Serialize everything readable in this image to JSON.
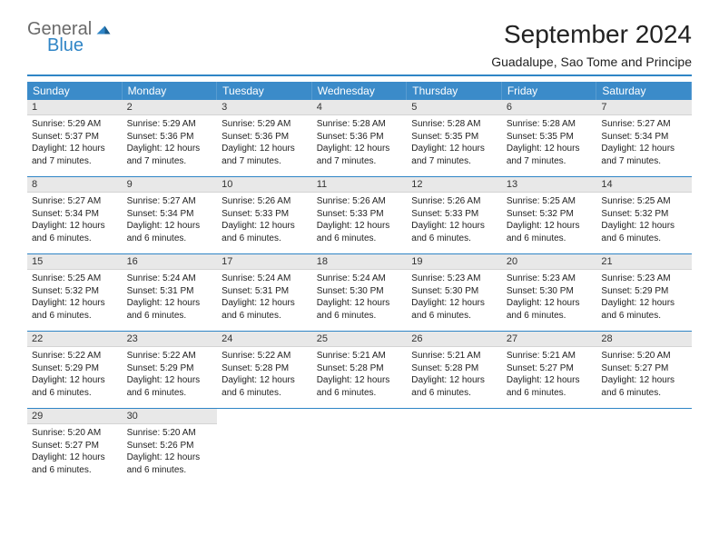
{
  "logo": {
    "text1": "General",
    "text2": "Blue",
    "accent": "#2f85c6",
    "gray": "#6a6a6a"
  },
  "title": "September 2024",
  "location": "Guadalupe, Sao Tome and Principe",
  "daynames": [
    "Sunday",
    "Monday",
    "Tuesday",
    "Wednesday",
    "Thursday",
    "Friday",
    "Saturday"
  ],
  "colors": {
    "header_bg": "#3b8bc9",
    "underline": "#2f85c6",
    "daynum_bg": "#e8e8e8",
    "text": "#111111",
    "background": "#ffffff"
  },
  "weeks": [
    [
      {
        "n": "1",
        "sr": "Sunrise: 5:29 AM",
        "ss": "Sunset: 5:37 PM",
        "dl": "Daylight: 12 hours and 7 minutes."
      },
      {
        "n": "2",
        "sr": "Sunrise: 5:29 AM",
        "ss": "Sunset: 5:36 PM",
        "dl": "Daylight: 12 hours and 7 minutes."
      },
      {
        "n": "3",
        "sr": "Sunrise: 5:29 AM",
        "ss": "Sunset: 5:36 PM",
        "dl": "Daylight: 12 hours and 7 minutes."
      },
      {
        "n": "4",
        "sr": "Sunrise: 5:28 AM",
        "ss": "Sunset: 5:36 PM",
        "dl": "Daylight: 12 hours and 7 minutes."
      },
      {
        "n": "5",
        "sr": "Sunrise: 5:28 AM",
        "ss": "Sunset: 5:35 PM",
        "dl": "Daylight: 12 hours and 7 minutes."
      },
      {
        "n": "6",
        "sr": "Sunrise: 5:28 AM",
        "ss": "Sunset: 5:35 PM",
        "dl": "Daylight: 12 hours and 7 minutes."
      },
      {
        "n": "7",
        "sr": "Sunrise: 5:27 AM",
        "ss": "Sunset: 5:34 PM",
        "dl": "Daylight: 12 hours and 7 minutes."
      }
    ],
    [
      {
        "n": "8",
        "sr": "Sunrise: 5:27 AM",
        "ss": "Sunset: 5:34 PM",
        "dl": "Daylight: 12 hours and 6 minutes."
      },
      {
        "n": "9",
        "sr": "Sunrise: 5:27 AM",
        "ss": "Sunset: 5:34 PM",
        "dl": "Daylight: 12 hours and 6 minutes."
      },
      {
        "n": "10",
        "sr": "Sunrise: 5:26 AM",
        "ss": "Sunset: 5:33 PM",
        "dl": "Daylight: 12 hours and 6 minutes."
      },
      {
        "n": "11",
        "sr": "Sunrise: 5:26 AM",
        "ss": "Sunset: 5:33 PM",
        "dl": "Daylight: 12 hours and 6 minutes."
      },
      {
        "n": "12",
        "sr": "Sunrise: 5:26 AM",
        "ss": "Sunset: 5:33 PM",
        "dl": "Daylight: 12 hours and 6 minutes."
      },
      {
        "n": "13",
        "sr": "Sunrise: 5:25 AM",
        "ss": "Sunset: 5:32 PM",
        "dl": "Daylight: 12 hours and 6 minutes."
      },
      {
        "n": "14",
        "sr": "Sunrise: 5:25 AM",
        "ss": "Sunset: 5:32 PM",
        "dl": "Daylight: 12 hours and 6 minutes."
      }
    ],
    [
      {
        "n": "15",
        "sr": "Sunrise: 5:25 AM",
        "ss": "Sunset: 5:32 PM",
        "dl": "Daylight: 12 hours and 6 minutes."
      },
      {
        "n": "16",
        "sr": "Sunrise: 5:24 AM",
        "ss": "Sunset: 5:31 PM",
        "dl": "Daylight: 12 hours and 6 minutes."
      },
      {
        "n": "17",
        "sr": "Sunrise: 5:24 AM",
        "ss": "Sunset: 5:31 PM",
        "dl": "Daylight: 12 hours and 6 minutes."
      },
      {
        "n": "18",
        "sr": "Sunrise: 5:24 AM",
        "ss": "Sunset: 5:30 PM",
        "dl": "Daylight: 12 hours and 6 minutes."
      },
      {
        "n": "19",
        "sr": "Sunrise: 5:23 AM",
        "ss": "Sunset: 5:30 PM",
        "dl": "Daylight: 12 hours and 6 minutes."
      },
      {
        "n": "20",
        "sr": "Sunrise: 5:23 AM",
        "ss": "Sunset: 5:30 PM",
        "dl": "Daylight: 12 hours and 6 minutes."
      },
      {
        "n": "21",
        "sr": "Sunrise: 5:23 AM",
        "ss": "Sunset: 5:29 PM",
        "dl": "Daylight: 12 hours and 6 minutes."
      }
    ],
    [
      {
        "n": "22",
        "sr": "Sunrise: 5:22 AM",
        "ss": "Sunset: 5:29 PM",
        "dl": "Daylight: 12 hours and 6 minutes."
      },
      {
        "n": "23",
        "sr": "Sunrise: 5:22 AM",
        "ss": "Sunset: 5:29 PM",
        "dl": "Daylight: 12 hours and 6 minutes."
      },
      {
        "n": "24",
        "sr": "Sunrise: 5:22 AM",
        "ss": "Sunset: 5:28 PM",
        "dl": "Daylight: 12 hours and 6 minutes."
      },
      {
        "n": "25",
        "sr": "Sunrise: 5:21 AM",
        "ss": "Sunset: 5:28 PM",
        "dl": "Daylight: 12 hours and 6 minutes."
      },
      {
        "n": "26",
        "sr": "Sunrise: 5:21 AM",
        "ss": "Sunset: 5:28 PM",
        "dl": "Daylight: 12 hours and 6 minutes."
      },
      {
        "n": "27",
        "sr": "Sunrise: 5:21 AM",
        "ss": "Sunset: 5:27 PM",
        "dl": "Daylight: 12 hours and 6 minutes."
      },
      {
        "n": "28",
        "sr": "Sunrise: 5:20 AM",
        "ss": "Sunset: 5:27 PM",
        "dl": "Daylight: 12 hours and 6 minutes."
      }
    ],
    [
      {
        "n": "29",
        "sr": "Sunrise: 5:20 AM",
        "ss": "Sunset: 5:27 PM",
        "dl": "Daylight: 12 hours and 6 minutes."
      },
      {
        "n": "30",
        "sr": "Sunrise: 5:20 AM",
        "ss": "Sunset: 5:26 PM",
        "dl": "Daylight: 12 hours and 6 minutes."
      },
      null,
      null,
      null,
      null,
      null
    ]
  ]
}
